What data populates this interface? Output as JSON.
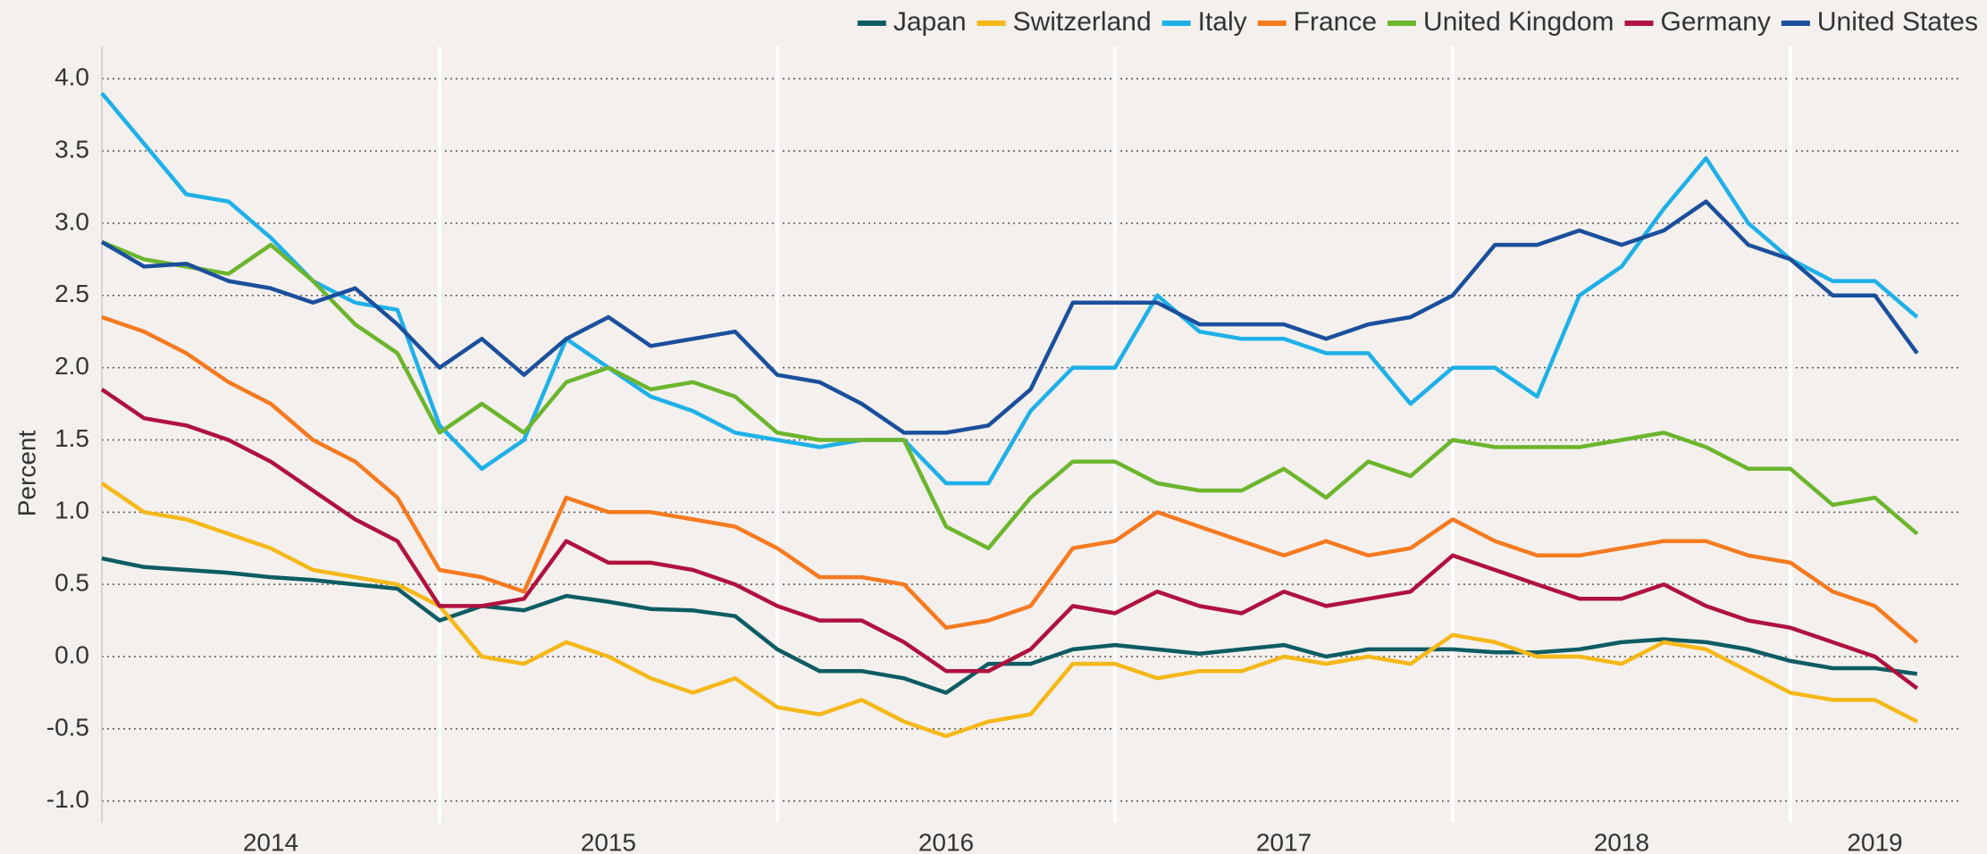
{
  "chart_data": {
    "type": "line",
    "ylabel": "Percent",
    "legend": "top-right",
    "grid": true,
    "background": "#f3f0ed",
    "x": [
      2014,
      2014.125,
      2014.25,
      2014.375,
      2014.5,
      2014.625,
      2014.75,
      2014.875,
      2015,
      2015.125,
      2015.25,
      2015.375,
      2015.5,
      2015.625,
      2015.75,
      2015.875,
      2016,
      2016.125,
      2016.25,
      2016.375,
      2016.5,
      2016.625,
      2016.75,
      2016.875,
      2017,
      2017.125,
      2017.25,
      2017.375,
      2017.5,
      2017.625,
      2017.75,
      2017.875,
      2018,
      2018.125,
      2018.25,
      2018.375,
      2018.5,
      2018.625,
      2018.75,
      2018.875,
      2019,
      2019.125,
      2019.25,
      2019.375
    ],
    "xlim": [
      2014,
      2019.5
    ],
    "xticks": [
      {
        "value": 2014.5,
        "label": "2014"
      },
      {
        "value": 2015.5,
        "label": "2015"
      },
      {
        "value": 2016.5,
        "label": "2016"
      },
      {
        "value": 2017.5,
        "label": "2017"
      },
      {
        "value": 2018.5,
        "label": "2018"
      },
      {
        "value": 2019.25,
        "label": "2019"
      }
    ],
    "year_boundaries": [
      2015,
      2016,
      2017,
      2018,
      2019
    ],
    "ylim": [
      -1.15,
      4.1
    ],
    "yticks": [
      {
        "value": 4,
        "label": "4.0"
      },
      3.5,
      {
        "value": 3,
        "label": "3.0"
      },
      2.5,
      {
        "value": 2,
        "label": "2.0"
      },
      1.5,
      {
        "value": 1,
        "label": "1.0"
      },
      0.5,
      {
        "value": 0,
        "label": "0.0"
      },
      -0.5,
      {
        "value": -1,
        "label": "-1.0"
      }
    ],
    "series": [
      {
        "name": "Japan",
        "color": "#0e5c63",
        "values": [
          0.68,
          0.62,
          0.6,
          0.58,
          0.55,
          0.53,
          0.5,
          0.47,
          0.25,
          0.35,
          0.32,
          0.42,
          0.38,
          0.33,
          0.32,
          0.28,
          0.05,
          -0.1,
          -0.1,
          -0.15,
          -0.25,
          -0.05,
          -0.05,
          0.05,
          0.08,
          0.05,
          0.02,
          0.05,
          0.08,
          0.0,
          0.05,
          0.05,
          0.05,
          0.03,
          0.03,
          0.05,
          0.1,
          0.12,
          0.1,
          0.05,
          -0.03,
          -0.08,
          -0.08,
          -0.12
        ]
      },
      {
        "name": "Switzerland",
        "color": "#f5b819",
        "values": [
          1.2,
          1.0,
          0.95,
          0.85,
          0.75,
          0.6,
          0.55,
          0.5,
          0.35,
          0.0,
          -0.05,
          0.1,
          0.0,
          -0.15,
          -0.25,
          -0.15,
          -0.35,
          -0.4,
          -0.3,
          -0.45,
          -0.55,
          -0.45,
          -0.4,
          -0.05,
          -0.05,
          -0.15,
          -0.1,
          -0.1,
          0.0,
          -0.05,
          0.0,
          -0.05,
          0.15,
          0.1,
          0.0,
          0.0,
          -0.05,
          0.1,
          0.05,
          -0.1,
          -0.25,
          -0.3,
          -0.3,
          -0.45
        ]
      },
      {
        "name": "Italy",
        "color": "#1fb0e8",
        "values": [
          3.9,
          3.55,
          3.2,
          3.15,
          2.9,
          2.6,
          2.45,
          2.4,
          1.6,
          1.3,
          1.5,
          2.2,
          2.0,
          1.8,
          1.7,
          1.55,
          1.5,
          1.45,
          1.5,
          1.5,
          1.2,
          1.2,
          1.7,
          2.0,
          2.0,
          2.5,
          2.25,
          2.2,
          2.2,
          2.1,
          2.1,
          1.75,
          2.0,
          2.0,
          1.8,
          2.5,
          2.7,
          3.1,
          3.45,
          3.0,
          2.75,
          2.6,
          2.6,
          2.35
        ]
      },
      {
        "name": "France",
        "color": "#f57a20",
        "values": [
          2.35,
          2.25,
          2.1,
          1.9,
          1.75,
          1.5,
          1.35,
          1.1,
          0.6,
          0.55,
          0.45,
          1.1,
          1.0,
          1.0,
          0.95,
          0.9,
          0.75,
          0.55,
          0.55,
          0.5,
          0.2,
          0.25,
          0.35,
          0.75,
          0.8,
          1.0,
          0.9,
          0.8,
          0.7,
          0.8,
          0.7,
          0.75,
          0.95,
          0.8,
          0.7,
          0.7,
          0.75,
          0.8,
          0.8,
          0.7,
          0.65,
          0.45,
          0.35,
          0.1
        ]
      },
      {
        "name": "United Kingdom",
        "color": "#6cb52d",
        "values": [
          2.87,
          2.75,
          2.7,
          2.65,
          2.85,
          2.6,
          2.3,
          2.1,
          1.55,
          1.75,
          1.55,
          1.9,
          2.0,
          1.85,
          1.9,
          1.8,
          1.55,
          1.5,
          1.5,
          1.5,
          0.9,
          0.75,
          1.1,
          1.35,
          1.35,
          1.2,
          1.15,
          1.15,
          1.3,
          1.1,
          1.35,
          1.25,
          1.5,
          1.45,
          1.45,
          1.45,
          1.5,
          1.55,
          1.45,
          1.3,
          1.3,
          1.05,
          1.1,
          0.85
        ]
      },
      {
        "name": "Germany",
        "color": "#b0123e",
        "values": [
          1.85,
          1.65,
          1.6,
          1.5,
          1.35,
          1.15,
          0.95,
          0.8,
          0.35,
          0.35,
          0.4,
          0.8,
          0.65,
          0.65,
          0.6,
          0.5,
          0.35,
          0.25,
          0.25,
          0.1,
          -0.1,
          -0.1,
          0.05,
          0.35,
          0.3,
          0.45,
          0.35,
          0.3,
          0.45,
          0.35,
          0.4,
          0.45,
          0.7,
          0.6,
          0.5,
          0.4,
          0.4,
          0.5,
          0.35,
          0.25,
          0.2,
          0.1,
          0.0,
          -0.22
        ]
      },
      {
        "name": "United States",
        "color": "#1b4f9c",
        "values": [
          2.87,
          2.7,
          2.72,
          2.6,
          2.55,
          2.45,
          2.55,
          2.3,
          2.0,
          2.2,
          1.95,
          2.2,
          2.35,
          2.15,
          2.2,
          2.25,
          1.95,
          1.9,
          1.75,
          1.55,
          1.55,
          1.6,
          1.85,
          2.45,
          2.45,
          2.45,
          2.3,
          2.3,
          2.3,
          2.2,
          2.3,
          2.35,
          2.5,
          2.85,
          2.85,
          2.95,
          2.85,
          2.95,
          3.15,
          2.85,
          2.75,
          2.5,
          2.5,
          2.1
        ]
      }
    ]
  }
}
